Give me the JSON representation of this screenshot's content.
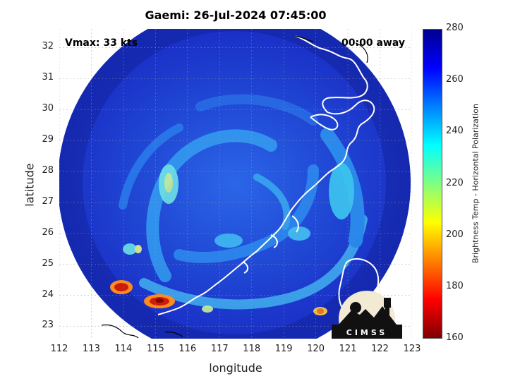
{
  "title": "Gaemi: 26-Jul-2024 07:45:00",
  "overlay": {
    "vmax": "Vmax: 33 kts",
    "away": "00:00 away"
  },
  "axes": {
    "xlabel": "longitude",
    "ylabel": "latitude",
    "xticks": [
      "112",
      "113",
      "114",
      "115",
      "116",
      "117",
      "118",
      "119",
      "120",
      "121",
      "122",
      "123"
    ],
    "yticks": [
      "32",
      "31",
      "30",
      "29",
      "28",
      "27",
      "26",
      "25",
      "24",
      "23"
    ],
    "xlim": [
      112,
      123
    ],
    "ylim": [
      22.6,
      32.6
    ]
  },
  "colorbar": {
    "title": "Brightness Temp - Horizontal Polarization",
    "ticks": [
      "280",
      "260",
      "240",
      "220",
      "200",
      "180",
      "160"
    ],
    "range": [
      160,
      280
    ],
    "colormap": [
      "#7f0000",
      "#ff0000",
      "#ff8000",
      "#ffff00",
      "#80ff80",
      "#00ffff",
      "#0080ff",
      "#0000ff",
      "#00008f"
    ]
  },
  "logo": {
    "text": "CIMSS"
  },
  "colors": {
    "background_scene": "#1a2fc6",
    "cold_spot": "#c81e0a",
    "coastline": "#ffffff"
  }
}
